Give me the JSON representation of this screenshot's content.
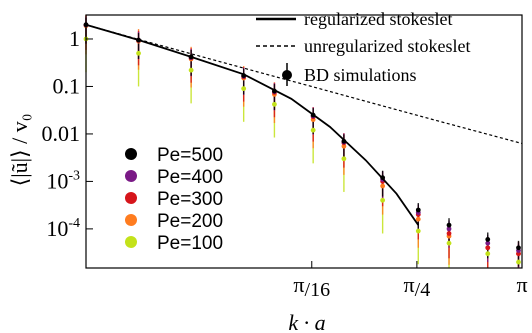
{
  "chart_data": {
    "type": "scatter",
    "x_scale": "log",
    "y_scale": "log",
    "xlim": [
      0.01,
      3.14159
    ],
    "ylim": [
      1.5e-05,
      3.2
    ],
    "xlabel": "k · a",
    "ylabel": "⟨|ũ|⟩ / v₀",
    "x_ticks": [
      {
        "value": 0.19635,
        "label": "π/16"
      },
      {
        "value": 0.785398,
        "label": "π/4"
      },
      {
        "value": 3.14159,
        "label": "π"
      }
    ],
    "y_ticks": [
      {
        "value": 1,
        "label": "1"
      },
      {
        "value": 0.1,
        "label": "0.1"
      },
      {
        "value": 0.01,
        "label": "0.01"
      },
      {
        "value": 0.001,
        "label": "10-3"
      },
      {
        "value": 0.0001,
        "label": "10-4"
      }
    ],
    "lines": [
      {
        "name": "regularized stokeslet",
        "style": "solid",
        "color": "#000000",
        "x": [
          0.01,
          0.02,
          0.04,
          0.08,
          0.15,
          0.25,
          0.4,
          0.6,
          0.8
        ],
        "y": [
          2.0,
          0.95,
          0.42,
          0.18,
          0.055,
          0.014,
          0.0028,
          0.00055,
          0.00012
        ]
      },
      {
        "name": "unregularized stokeslet",
        "style": "dashed",
        "color": "#000000",
        "x": [
          0.01,
          0.02,
          0.05,
          0.1,
          0.2,
          0.5,
          1.0,
          2.0,
          3.14159
        ],
        "y": [
          2.0,
          0.98,
          0.39,
          0.195,
          0.098,
          0.039,
          0.0195,
          0.0098,
          0.0063
        ]
      }
    ],
    "legend_lines": {
      "regularized": "regularized stokeslet",
      "unregularized": "unregularized stokeslet",
      "bd": "BD simulations"
    },
    "series": [
      {
        "name": "Pe=500",
        "color": "#000000",
        "x": [
          0.01,
          0.02,
          0.04,
          0.08,
          0.12,
          0.2,
          0.3,
          0.5,
          0.8,
          1.2,
          2.0,
          3.0
        ],
        "y": [
          2.0,
          0.95,
          0.42,
          0.17,
          0.08,
          0.025,
          0.007,
          0.0012,
          0.00025,
          0.00012,
          6e-05,
          4e-05
        ],
        "err_low_factor": 0.4,
        "err_high_factor": 1.4
      },
      {
        "name": "Pe=400",
        "color": "#7a1a86",
        "x": [
          0.01,
          0.02,
          0.04,
          0.08,
          0.12,
          0.2,
          0.3,
          0.5,
          0.8,
          1.2,
          2.0,
          3.0
        ],
        "y": [
          1.98,
          0.94,
          0.41,
          0.165,
          0.078,
          0.024,
          0.0068,
          0.0011,
          0.00022,
          0.0001,
          5e-05,
          3.5e-05
        ],
        "err_low_factor": 0.4,
        "err_high_factor": 1.5
      },
      {
        "name": "Pe=300",
        "color": "#d6151b",
        "x": [
          0.01,
          0.02,
          0.04,
          0.08,
          0.12,
          0.2,
          0.3,
          0.5,
          0.8,
          1.2,
          2.0,
          3.0
        ],
        "y": [
          1.96,
          0.93,
          0.4,
          0.16,
          0.075,
          0.023,
          0.0065,
          0.001,
          0.0002,
          8e-05,
          4e-05,
          3e-05
        ],
        "err_low_factor": 0.3,
        "err_high_factor": 1.6
      },
      {
        "name": "Pe=200",
        "color": "#ff7c1f",
        "x": [
          0.01,
          0.02,
          0.04,
          0.08,
          0.12,
          0.2,
          0.3,
          0.5,
          0.8,
          1.2,
          2.0,
          3.0
        ],
        "y": [
          1.9,
          0.9,
          0.38,
          0.15,
          0.068,
          0.02,
          0.0055,
          0.0008,
          0.00016,
          7e-05,
          4e-05,
          3e-05
        ],
        "err_low_factor": 0.25,
        "err_high_factor": 1.8
      },
      {
        "name": "Pe=100",
        "color": "#c3e21a",
        "x": [
          0.01,
          0.02,
          0.04,
          0.08,
          0.12,
          0.2,
          0.3,
          0.5,
          0.8,
          1.2,
          2.0,
          3.0
        ],
        "y": [
          1.0,
          0.5,
          0.22,
          0.09,
          0.042,
          0.012,
          0.003,
          0.0004,
          9e-05,
          5e-05,
          3e-05,
          2e-05
        ],
        "err_low_factor": 0.2,
        "err_high_factor": 2.2
      }
    ],
    "legend_position": "lower-left"
  }
}
